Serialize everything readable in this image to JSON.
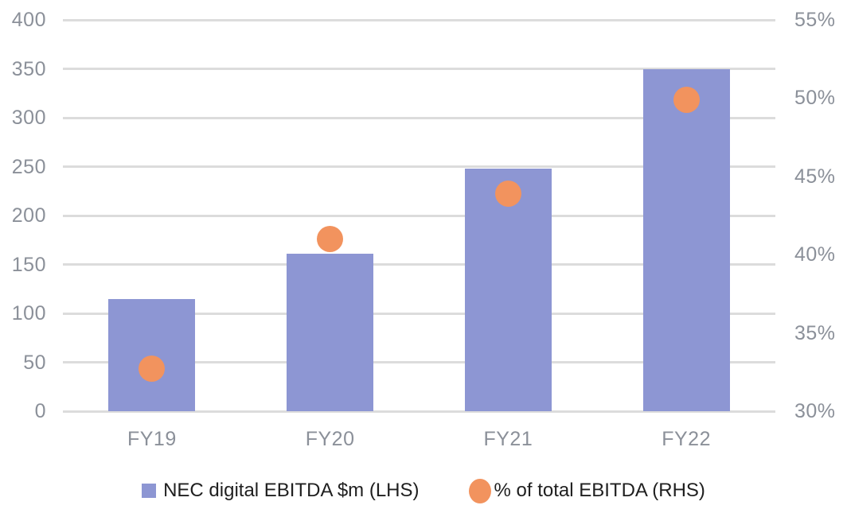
{
  "chart_data": {
    "type": "combo-bar-scatter",
    "categories": [
      "FY19",
      "FY20",
      "FY21",
      "FY22"
    ],
    "series": [
      {
        "name": "NEC digital EBITDA $m (LHS)",
        "type": "bar",
        "axis": "left",
        "values": [
          115,
          161,
          248,
          350
        ],
        "color": "#8d96d3"
      },
      {
        "name": "% of total EBITDA (RHS)",
        "type": "scatter",
        "axis": "right",
        "values": [
          32.7,
          41.0,
          43.9,
          49.9
        ],
        "color": "#f2935e"
      }
    ],
    "left_axis": {
      "min": 0,
      "max": 400,
      "step": 50,
      "tick_values": [
        0,
        50,
        100,
        150,
        200,
        250,
        300,
        350,
        400
      ],
      "tick_labels": [
        "0",
        "50",
        "100",
        "150",
        "200",
        "250",
        "300",
        "350",
        "400"
      ]
    },
    "right_axis": {
      "min": 30,
      "max": 55,
      "step": 5,
      "tick_values": [
        30,
        35,
        40,
        45,
        50,
        55
      ],
      "tick_labels": [
        "30%",
        "35%",
        "40%",
        "45%",
        "50%",
        "55%"
      ]
    },
    "grid": true,
    "legend_position": "bottom",
    "colors": {
      "gridline": "#dcdcdc",
      "axis_label_text": "#8b9099",
      "legend_text": "#1f1f1f",
      "background": "#ffffff"
    }
  }
}
